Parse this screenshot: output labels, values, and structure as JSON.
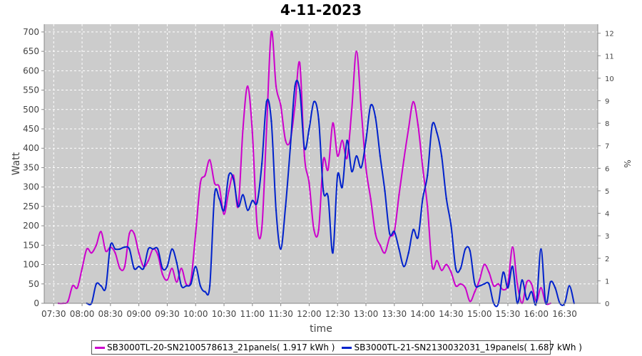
{
  "chart_data": {
    "type": "line",
    "title": "4-11-2023",
    "xlabel": "time",
    "ylabel": "Watt",
    "y2label": "%",
    "x_ticks": [
      "07:30",
      "08:00",
      "08:30",
      "09:00",
      "09:30",
      "10:00",
      "10:30",
      "11:00",
      "11:30",
      "12:00",
      "12:30",
      "13:00",
      "13:30",
      "14:00",
      "14:30",
      "15:00",
      "15:30",
      "16:00",
      "16:30"
    ],
    "x_range": [
      "07:20",
      "17:05"
    ],
    "ylim": [
      0,
      720
    ],
    "y_ticks": [
      0,
      50,
      100,
      150,
      200,
      250,
      300,
      350,
      400,
      450,
      500,
      550,
      600,
      650,
      700
    ],
    "y2lim": [
      0,
      12.4
    ],
    "y2_ticks": [
      0,
      1,
      2,
      3,
      4,
      5,
      6,
      7,
      8,
      9,
      10,
      11,
      12
    ],
    "grid": true,
    "legend_position": "bottom",
    "background": "#cccccc",
    "series": [
      {
        "name": "SB3000TL-20-SN2100578613_21panels( 1.917 kWh )",
        "color": "#cc00cc",
        "points": [
          [
            "07:35",
            0
          ],
          [
            "07:40",
            0
          ],
          [
            "07:45",
            5
          ],
          [
            "07:50",
            45
          ],
          [
            "07:55",
            40
          ],
          [
            "08:00",
            90
          ],
          [
            "08:05",
            140
          ],
          [
            "08:10",
            130
          ],
          [
            "08:15",
            150
          ],
          [
            "08:20",
            185
          ],
          [
            "08:25",
            135
          ],
          [
            "08:30",
            145
          ],
          [
            "08:35",
            130
          ],
          [
            "08:40",
            90
          ],
          [
            "08:45",
            95
          ],
          [
            "08:50",
            180
          ],
          [
            "08:55",
            180
          ],
          [
            "09:00",
            130
          ],
          [
            "09:05",
            95
          ],
          [
            "09:10",
            110
          ],
          [
            "09:15",
            140
          ],
          [
            "09:20",
            125
          ],
          [
            "09:25",
            75
          ],
          [
            "09:30",
            60
          ],
          [
            "09:35",
            90
          ],
          [
            "09:40",
            55
          ],
          [
            "09:45",
            90
          ],
          [
            "09:50",
            50
          ],
          [
            "09:55",
            60
          ],
          [
            "10:00",
            180
          ],
          [
            "10:05",
            310
          ],
          [
            "10:10",
            330
          ],
          [
            "10:15",
            370
          ],
          [
            "10:20",
            310
          ],
          [
            "10:25",
            300
          ],
          [
            "10:30",
            230
          ],
          [
            "10:35",
            290
          ],
          [
            "10:40",
            330
          ],
          [
            "10:45",
            250
          ],
          [
            "10:50",
            450
          ],
          [
            "10:55",
            560
          ],
          [
            "11:00",
            440
          ],
          [
            "11:05",
            200
          ],
          [
            "11:10",
            195
          ],
          [
            "11:15",
            450
          ],
          [
            "11:20",
            700
          ],
          [
            "11:25",
            560
          ],
          [
            "11:30",
            510
          ],
          [
            "11:35",
            420
          ],
          [
            "11:40",
            420
          ],
          [
            "11:45",
            510
          ],
          [
            "11:50",
            620
          ],
          [
            "11:55",
            380
          ],
          [
            "12:00",
            310
          ],
          [
            "12:05",
            190
          ],
          [
            "12:10",
            190
          ],
          [
            "12:15",
            370
          ],
          [
            "12:20",
            345
          ],
          [
            "12:25",
            465
          ],
          [
            "12:30",
            380
          ],
          [
            "12:35",
            420
          ],
          [
            "12:40",
            375
          ],
          [
            "12:45",
            500
          ],
          [
            "12:50",
            650
          ],
          [
            "12:55",
            500
          ],
          [
            "13:00",
            350
          ],
          [
            "13:05",
            270
          ],
          [
            "13:10",
            180
          ],
          [
            "13:15",
            150
          ],
          [
            "13:20",
            130
          ],
          [
            "13:25",
            170
          ],
          [
            "13:30",
            185
          ],
          [
            "13:35",
            280
          ],
          [
            "13:40",
            370
          ],
          [
            "13:45",
            450
          ],
          [
            "13:50",
            520
          ],
          [
            "13:55",
            460
          ],
          [
            "14:00",
            350
          ],
          [
            "14:05",
            250
          ],
          [
            "14:10",
            95
          ],
          [
            "14:15",
            110
          ],
          [
            "14:20",
            85
          ],
          [
            "14:25",
            100
          ],
          [
            "14:30",
            80
          ],
          [
            "14:35",
            45
          ],
          [
            "14:40",
            50
          ],
          [
            "14:45",
            40
          ],
          [
            "14:50",
            5
          ],
          [
            "14:55",
            30
          ],
          [
            "15:00",
            60
          ],
          [
            "15:05",
            100
          ],
          [
            "15:10",
            80
          ],
          [
            "15:15",
            45
          ],
          [
            "15:20",
            50
          ],
          [
            "15:25",
            35
          ],
          [
            "15:30",
            50
          ],
          [
            "15:35",
            145
          ],
          [
            "15:40",
            50
          ],
          [
            "15:45",
            0
          ],
          [
            "15:50",
            55
          ],
          [
            "15:55",
            50
          ],
          [
            "16:00",
            5
          ],
          [
            "16:05",
            40
          ],
          [
            "16:10",
            0
          ],
          [
            "16:15",
            0
          ]
        ]
      },
      {
        "name": "SB3000TL-21-SN2130032031_19panels( 1.687 kWh )",
        "color": "#0022cc",
        "points": [
          [
            "08:05",
            0
          ],
          [
            "08:10",
            0
          ],
          [
            "08:15",
            50
          ],
          [
            "08:20",
            45
          ],
          [
            "08:25",
            40
          ],
          [
            "08:30",
            150
          ],
          [
            "08:35",
            140
          ],
          [
            "08:40",
            140
          ],
          [
            "08:45",
            145
          ],
          [
            "08:50",
            140
          ],
          [
            "08:55",
            90
          ],
          [
            "09:00",
            95
          ],
          [
            "09:05",
            90
          ],
          [
            "09:10",
            140
          ],
          [
            "09:15",
            140
          ],
          [
            "09:20",
            140
          ],
          [
            "09:25",
            90
          ],
          [
            "09:30",
            95
          ],
          [
            "09:35",
            140
          ],
          [
            "09:40",
            105
          ],
          [
            "09:45",
            45
          ],
          [
            "09:50",
            45
          ],
          [
            "09:55",
            50
          ],
          [
            "10:00",
            95
          ],
          [
            "10:05",
            45
          ],
          [
            "10:10",
            30
          ],
          [
            "10:15",
            45
          ],
          [
            "10:20",
            280
          ],
          [
            "10:25",
            270
          ],
          [
            "10:30",
            240
          ],
          [
            "10:35",
            330
          ],
          [
            "10:40",
            320
          ],
          [
            "10:45",
            250
          ],
          [
            "10:50",
            280
          ],
          [
            "10:55",
            240
          ],
          [
            "11:00",
            265
          ],
          [
            "11:05",
            260
          ],
          [
            "11:10",
            360
          ],
          [
            "11:15",
            520
          ],
          [
            "11:20",
            470
          ],
          [
            "11:25",
            240
          ],
          [
            "11:30",
            140
          ],
          [
            "11:35",
            250
          ],
          [
            "11:40",
            400
          ],
          [
            "11:45",
            560
          ],
          [
            "11:50",
            550
          ],
          [
            "11:55",
            400
          ],
          [
            "12:00",
            450
          ],
          [
            "12:05",
            520
          ],
          [
            "12:10",
            475
          ],
          [
            "12:15",
            290
          ],
          [
            "12:20",
            275
          ],
          [
            "12:25",
            130
          ],
          [
            "12:30",
            330
          ],
          [
            "12:35",
            300
          ],
          [
            "12:40",
            420
          ],
          [
            "12:45",
            340
          ],
          [
            "12:50",
            380
          ],
          [
            "12:55",
            350
          ],
          [
            "13:00",
            420
          ],
          [
            "13:05",
            510
          ],
          [
            "13:10",
            480
          ],
          [
            "13:15",
            380
          ],
          [
            "13:20",
            290
          ],
          [
            "13:25",
            180
          ],
          [
            "13:30",
            185
          ],
          [
            "13:35",
            140
          ],
          [
            "13:40",
            95
          ],
          [
            "13:45",
            130
          ],
          [
            "13:50",
            190
          ],
          [
            "13:55",
            170
          ],
          [
            "14:00",
            270
          ],
          [
            "14:05",
            330
          ],
          [
            "14:10",
            460
          ],
          [
            "14:15",
            440
          ],
          [
            "14:20",
            380
          ],
          [
            "14:25",
            270
          ],
          [
            "14:30",
            200
          ],
          [
            "14:35",
            90
          ],
          [
            "14:40",
            90
          ],
          [
            "14:45",
            140
          ],
          [
            "14:50",
            135
          ],
          [
            "14:55",
            50
          ],
          [
            "15:00",
            45
          ],
          [
            "15:05",
            50
          ],
          [
            "15:10",
            50
          ],
          [
            "15:15",
            0
          ],
          [
            "15:20",
            0
          ],
          [
            "15:25",
            80
          ],
          [
            "15:30",
            40
          ],
          [
            "15:35",
            95
          ],
          [
            "15:40",
            0
          ],
          [
            "15:45",
            60
          ],
          [
            "15:50",
            10
          ],
          [
            "15:55",
            30
          ],
          [
            "16:00",
            0
          ],
          [
            "16:05",
            140
          ],
          [
            "16:10",
            0
          ],
          [
            "16:15",
            55
          ],
          [
            "16:20",
            40
          ],
          [
            "16:25",
            0
          ],
          [
            "16:30",
            0
          ],
          [
            "16:35",
            45
          ],
          [
            "16:40",
            0
          ]
        ]
      }
    ]
  }
}
